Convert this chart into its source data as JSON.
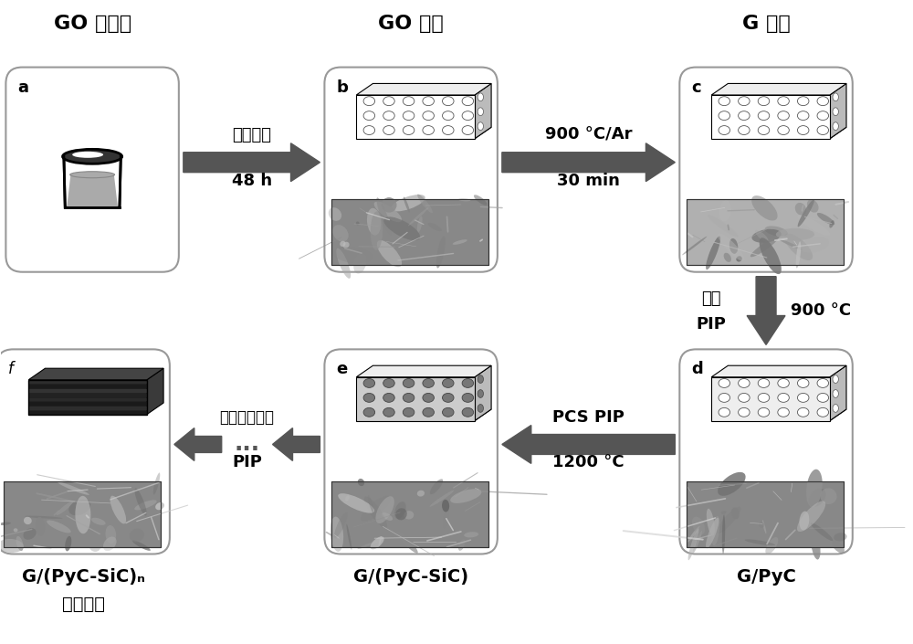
{
  "bg_color": "#ffffff",
  "arrow_color": "#555555",
  "box_edge": "#aaaaaa",
  "labels": {
    "a_title": "GO 分散液",
    "b_title": "GO 海绵",
    "c_title": "G 海绵",
    "d_label": "G/PyC",
    "e_label": "G/(PyC-SiC)",
    "f_label1": "G/(PyC-SiC)ₙ",
    "f_label2": "复合材料",
    "arrow1_top": "冷冻干燥",
    "arrow1_bot": "48 h",
    "arrow2_top": "900 °C/Ar",
    "arrow2_bot": "30 min",
    "arrow3_left1": "树脂",
    "arrow3_left2": "PIP",
    "arrow3_right": "900 °C",
    "arrow4_top": "PCS PIP",
    "arrow4_bot": "1200 °C",
    "arrow5_top": "交替浸渍裂解",
    "arrow5_bot": "PIP",
    "label_a": "a",
    "label_b": "b",
    "label_c": "c",
    "label_d": "d",
    "label_e": "e",
    "label_f": "f"
  }
}
